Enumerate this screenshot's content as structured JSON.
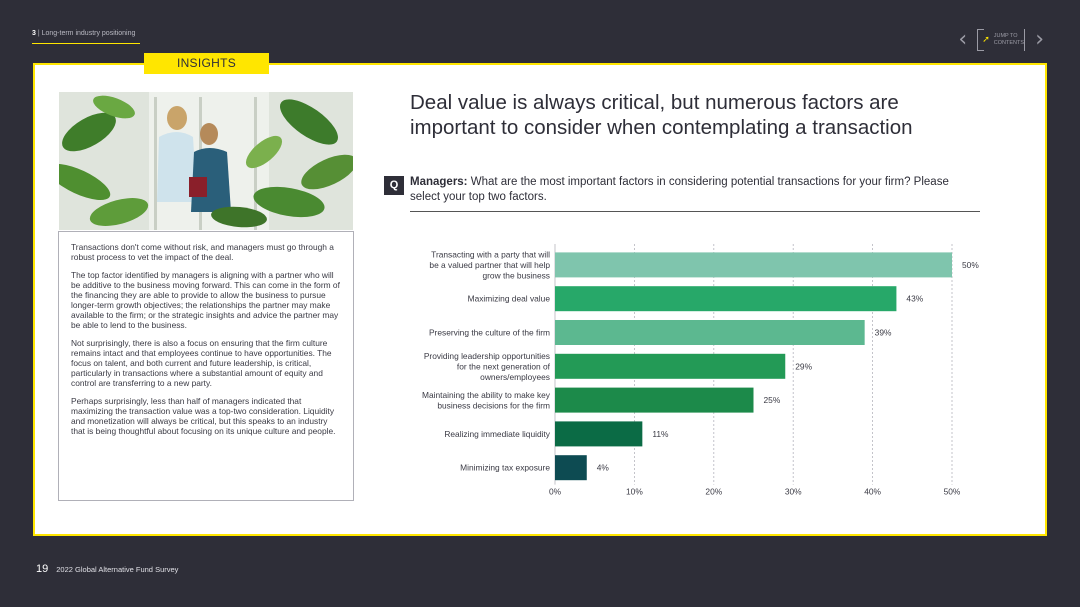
{
  "breadcrumb": {
    "number": "3",
    "text": " | Long-term industry positioning"
  },
  "nav": {
    "jump_line1": "JUMP TO",
    "jump_line2": "CONTENTS",
    "prev": "‹",
    "next": "›"
  },
  "insights_tab": "INSIGHTS",
  "body_paragraphs": [
    "Transactions don't come without risk, and managers must go through a robust process to vet the impact of the deal.",
    "The top factor identified by managers is aligning with a partner who will be additive to the business moving forward. This can come in the form of the financing they are able to provide to allow the business to pursue longer-term growth objectives; the relationships the partner may make available to the firm; or the strategic insights and advice the partner may be able to lend to the business.",
    "Not surprisingly, there is also a focus on ensuring that the firm culture remains intact and that employees continue to have opportunities. The focus on talent, and both current and future leadership, is critical, particularly in transactions where a substantial amount of equity and control are transferring to a new party.",
    "Perhaps surprisingly, less than half of managers indicated that maximizing the transaction value was a top-two consideration. Liquidity and monetization will always be critical, but this speaks to an industry that is being thoughtful about focusing on its unique culture and people."
  ],
  "heading_line1": "Deal value is always critical, but numerous factors are",
  "heading_line2": "important to consider when contemplating a transaction",
  "question": {
    "badge": "Q",
    "respondent": "Managers:",
    "text": " What are the most important factors in considering potential transactions for your firm? Please select your top two factors."
  },
  "chart_data": {
    "type": "bar",
    "orientation": "horizontal",
    "categories": [
      [
        "Transacting with a party that will",
        "be a valued partner that will help",
        "grow the business"
      ],
      [
        "Maximizing deal value"
      ],
      [
        "Preserving the culture of the firm"
      ],
      [
        "Providing leadership opportunities",
        "for the next generation of",
        "owners/employees"
      ],
      [
        "Maintaining the ability to make key",
        "business decisions for the firm"
      ],
      [
        "Realizing immediate liquidity"
      ],
      [
        "Minimizing tax exposure"
      ]
    ],
    "values": [
      50,
      43,
      39,
      29,
      25,
      11,
      4
    ],
    "value_labels": [
      "50%",
      "43%",
      "39%",
      "29%",
      "25%",
      "11%",
      "4%"
    ],
    "colors": [
      "#7fc5ad",
      "#27a869",
      "#5cb890",
      "#239a56",
      "#1c8a4a",
      "#0b6b45",
      "#0d4b52"
    ],
    "xticks": [
      0,
      10,
      20,
      30,
      40,
      50
    ],
    "xtick_labels": [
      "0%",
      "10%",
      "20%",
      "30%",
      "40%",
      "50%"
    ],
    "xlim": [
      0,
      50
    ],
    "grid": "vertical dashed"
  },
  "footer": {
    "page_number": "19",
    "document_title": "2022 Global Alternative Fund Survey"
  }
}
